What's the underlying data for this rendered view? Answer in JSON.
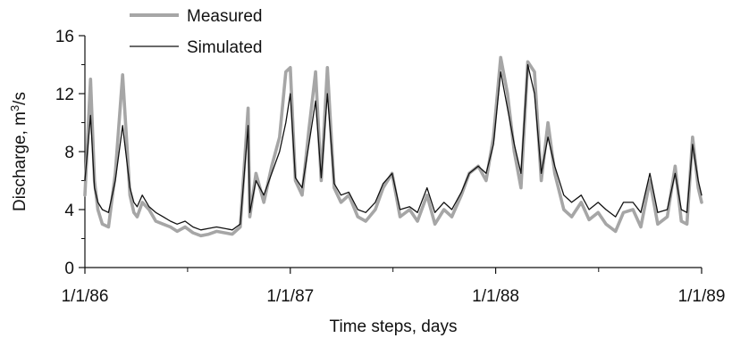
{
  "chart_data": {
    "type": "line",
    "xlabel": "Time steps, days",
    "ylabel_prefix": "Discharge, m",
    "ylabel_sup": "3",
    "ylabel_suffix": "/s",
    "ylim": [
      0,
      16
    ],
    "yticks": [
      0,
      4,
      8,
      12,
      16
    ],
    "ytick_labels": [
      "0",
      "4",
      "8",
      "12",
      "16"
    ],
    "xlim": [
      "1986-01-01",
      "1989-01-01"
    ],
    "xticks": [
      "1986-01-01",
      "1987-01-01",
      "1988-01-01",
      "1989-01-01"
    ],
    "xtick_labels": [
      "1/1/86",
      "1/1/87",
      "1/1/88",
      "1/1/89"
    ],
    "grid": false,
    "legend_position": "top-left",
    "colors": {
      "measured": "#a6a6a6",
      "simulated": "#111111"
    },
    "series": [
      {
        "name": "Measured",
        "x": [
          "1986-01-01",
          "1986-01-11",
          "1986-01-18",
          "1986-01-24",
          "1986-02-01",
          "1986-02-12",
          "1986-02-24",
          "1986-03-09",
          "1986-03-22",
          "1986-03-29",
          "1986-04-04",
          "1986-04-13",
          "1986-04-25",
          "1986-05-07",
          "1986-05-20",
          "1986-06-02",
          "1986-06-14",
          "1986-06-28",
          "1986-07-12",
          "1986-07-26",
          "1986-08-09",
          "1986-08-23",
          "1986-09-06",
          "1986-09-20",
          "1986-10-04",
          "1986-10-18",
          "1986-10-21",
          "1986-11-01",
          "1986-11-15",
          "1986-11-29",
          "1986-12-13",
          "1986-12-24",
          "1987-01-01",
          "1987-01-10",
          "1987-01-22",
          "1987-02-03",
          "1987-02-15",
          "1987-02-25",
          "1987-03-08",
          "1987-03-20",
          "1987-04-01",
          "1987-04-15",
          "1987-05-01",
          "1987-05-15",
          "1987-06-01",
          "1987-06-15",
          "1987-07-01",
          "1987-07-15",
          "1987-08-01",
          "1987-08-15",
          "1987-09-01",
          "1987-09-15",
          "1987-10-01",
          "1987-10-15",
          "1987-11-01",
          "1987-11-15",
          "1987-12-01",
          "1987-12-15",
          "1987-12-28",
          "1988-01-10",
          "1988-01-22",
          "1988-02-03",
          "1988-02-15",
          "1988-02-27",
          "1988-03-10",
          "1988-03-22",
          "1988-04-03",
          "1988-04-15",
          "1988-05-01",
          "1988-05-15",
          "1988-06-01",
          "1988-06-15",
          "1988-07-01",
          "1988-07-15",
          "1988-08-01",
          "1988-08-15",
          "1988-09-01",
          "1988-09-15",
          "1988-10-01",
          "1988-10-15",
          "1988-11-01",
          "1988-11-15",
          "1988-11-26",
          "1988-12-06",
          "1988-12-16",
          "1988-12-26",
          "1989-01-01"
        ],
        "y": [
          5.0,
          13.0,
          6.0,
          4.0,
          3.0,
          2.8,
          6.5,
          13.3,
          5.0,
          3.8,
          3.5,
          4.5,
          4.0,
          3.2,
          3.0,
          2.8,
          2.5,
          2.8,
          2.4,
          2.2,
          2.3,
          2.5,
          2.4,
          2.3,
          2.8,
          11.0,
          3.5,
          6.5,
          4.5,
          7.0,
          9.0,
          13.5,
          13.8,
          6.0,
          5.0,
          9.5,
          13.5,
          6.0,
          13.8,
          5.5,
          4.5,
          5.0,
          3.5,
          3.2,
          4.0,
          5.5,
          6.5,
          3.5,
          4.0,
          3.2,
          5.0,
          3.0,
          4.0,
          3.5,
          5.0,
          6.5,
          7.0,
          6.0,
          9.0,
          14.5,
          12.0,
          8.0,
          5.5,
          14.2,
          13.5,
          6.0,
          10.0,
          6.5,
          4.0,
          3.5,
          4.5,
          3.3,
          3.8,
          3.0,
          2.5,
          3.8,
          4.0,
          2.8,
          6.0,
          3.0,
          3.5,
          7.0,
          3.2,
          3.0,
          9.0,
          5.5,
          4.5
        ]
      },
      {
        "name": "Simulated",
        "x": [
          "1986-01-01",
          "1986-01-11",
          "1986-01-18",
          "1986-01-24",
          "1986-02-01",
          "1986-02-12",
          "1986-02-24",
          "1986-03-09",
          "1986-03-22",
          "1986-03-29",
          "1986-04-04",
          "1986-04-13",
          "1986-04-25",
          "1986-05-07",
          "1986-05-20",
          "1986-06-02",
          "1986-06-14",
          "1986-06-28",
          "1986-07-12",
          "1986-07-26",
          "1986-08-09",
          "1986-08-23",
          "1986-09-06",
          "1986-09-20",
          "1986-10-04",
          "1986-10-18",
          "1986-10-21",
          "1986-11-01",
          "1986-11-15",
          "1986-11-29",
          "1986-12-13",
          "1986-12-24",
          "1987-01-01",
          "1987-01-10",
          "1987-01-22",
          "1987-02-03",
          "1987-02-15",
          "1987-02-25",
          "1987-03-08",
          "1987-03-20",
          "1987-04-01",
          "1987-04-15",
          "1987-05-01",
          "1987-05-15",
          "1987-06-01",
          "1987-06-15",
          "1987-07-01",
          "1987-07-15",
          "1987-08-01",
          "1987-08-15",
          "1987-09-01",
          "1987-09-15",
          "1987-10-01",
          "1987-10-15",
          "1987-11-01",
          "1987-11-15",
          "1987-12-01",
          "1987-12-15",
          "1987-12-28",
          "1988-01-10",
          "1988-01-22",
          "1988-02-03",
          "1988-02-15",
          "1988-02-27",
          "1988-03-10",
          "1988-03-22",
          "1988-04-03",
          "1988-04-15",
          "1988-05-01",
          "1988-05-15",
          "1988-06-01",
          "1988-06-15",
          "1988-07-01",
          "1988-07-15",
          "1988-08-01",
          "1988-08-15",
          "1988-09-01",
          "1988-09-15",
          "1988-10-01",
          "1988-10-15",
          "1988-11-01",
          "1988-11-15",
          "1988-11-26",
          "1988-12-06",
          "1988-12-16",
          "1988-12-26",
          "1989-01-01"
        ],
        "y": [
          6.0,
          10.5,
          5.5,
          4.5,
          4.0,
          3.8,
          6.0,
          9.8,
          5.5,
          4.5,
          4.2,
          5.0,
          4.2,
          3.8,
          3.5,
          3.2,
          3.0,
          3.2,
          2.8,
          2.6,
          2.7,
          2.8,
          2.7,
          2.6,
          3.0,
          9.8,
          3.8,
          6.0,
          5.0,
          6.5,
          8.0,
          10.0,
          12.0,
          6.2,
          5.5,
          8.5,
          11.5,
          6.2,
          12.0,
          5.8,
          5.0,
          5.2,
          4.0,
          3.8,
          4.5,
          5.8,
          6.5,
          4.0,
          4.2,
          3.8,
          5.5,
          3.8,
          4.5,
          4.0,
          5.2,
          6.5,
          7.0,
          6.5,
          8.5,
          13.5,
          11.0,
          8.5,
          6.5,
          14.0,
          12.0,
          6.5,
          9.0,
          7.0,
          5.0,
          4.5,
          5.0,
          4.0,
          4.5,
          4.0,
          3.5,
          4.5,
          4.5,
          3.8,
          6.5,
          3.8,
          4.0,
          6.5,
          4.0,
          3.8,
          8.5,
          6.0,
          5.0
        ]
      }
    ]
  }
}
